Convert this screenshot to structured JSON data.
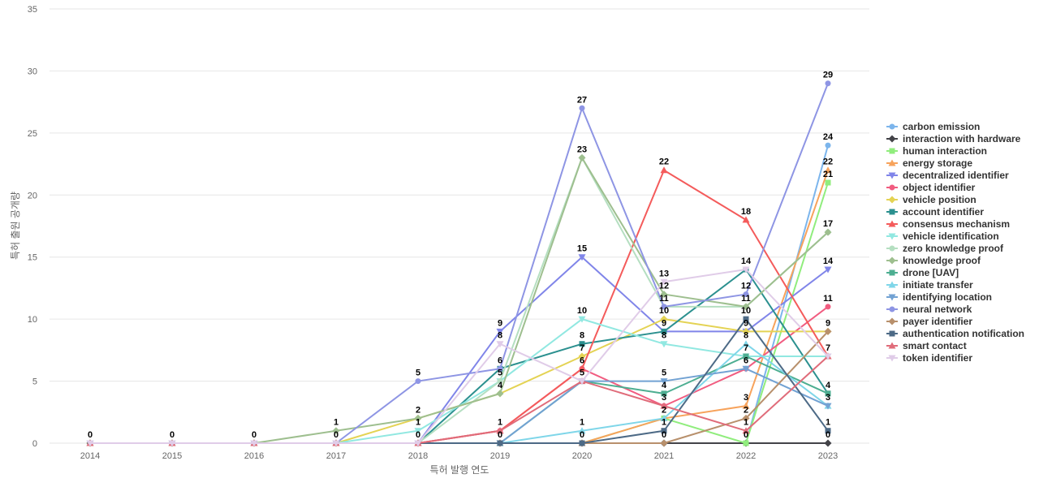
{
  "chart_data": {
    "type": "line",
    "title": "",
    "xlabel": "특허 발행 연도",
    "ylabel": "특허 출원 공개량",
    "ylim": [
      0,
      35
    ],
    "yticks": [
      0,
      5,
      10,
      15,
      20,
      25,
      30,
      35
    ],
    "x": [
      2014,
      2015,
      2016,
      2017,
      2018,
      2019,
      2020,
      2021,
      2022,
      2023
    ],
    "x_tick_labels": [
      "2014",
      "2015",
      "2016",
      "2017",
      "2018",
      "2019",
      "2020",
      "2021",
      "2022",
      "2023"
    ],
    "grid": "horizontal",
    "legend_position": "right",
    "series": [
      {
        "name": "carbon emission",
        "color": "#7cb5ec",
        "marker": "circle",
        "values": [
          0,
          0,
          0,
          0,
          0,
          0,
          0,
          0,
          0,
          24
        ]
      },
      {
        "name": "interaction with hardware",
        "color": "#434348",
        "marker": "diamond",
        "values": [
          0,
          0,
          0,
          0,
          0,
          0,
          0,
          0,
          0,
          0
        ]
      },
      {
        "name": "human interaction",
        "color": "#90ed7d",
        "marker": "square",
        "values": [
          0,
          0,
          0,
          0,
          0,
          0,
          0,
          2,
          0,
          21
        ]
      },
      {
        "name": "energy storage",
        "color": "#f7a35c",
        "marker": "triangle",
        "values": [
          0,
          0,
          0,
          0,
          0,
          0,
          0,
          2,
          3,
          22
        ]
      },
      {
        "name": "decentralized identifier",
        "color": "#8085e9",
        "marker": "triangle-down",
        "values": [
          0,
          0,
          0,
          0,
          0,
          9,
          15,
          9,
          9,
          14
        ]
      },
      {
        "name": "object identifier",
        "color": "#f15c80",
        "marker": "circle",
        "values": [
          0,
          0,
          0,
          0,
          0,
          1,
          6,
          3,
          6,
          11
        ]
      },
      {
        "name": "vehicle position",
        "color": "#e4d354",
        "marker": "diamond",
        "values": [
          0,
          0,
          0,
          0,
          2,
          4,
          7,
          10,
          9,
          9
        ]
      },
      {
        "name": "account identifier",
        "color": "#2b908f",
        "marker": "square",
        "values": [
          0,
          0,
          0,
          0,
          0,
          6,
          8,
          9,
          14,
          4
        ]
      },
      {
        "name": "consensus mechanism",
        "color": "#f45b5b",
        "marker": "triangle",
        "values": [
          0,
          0,
          0,
          0,
          0,
          1,
          6,
          22,
          18,
          7
        ]
      },
      {
        "name": "vehicle identification",
        "color": "#91e8e1",
        "marker": "triangle-down",
        "values": [
          0,
          0,
          0,
          0,
          1,
          5,
          10,
          8,
          7,
          7
        ]
      },
      {
        "name": "zero knowledge proof",
        "color": "#b5dfc1",
        "marker": "circle",
        "values": [
          0,
          0,
          0,
          0,
          0,
          5,
          23,
          11,
          11,
          17
        ]
      },
      {
        "name": "knowledge proof",
        "color": "#9ebf8f",
        "marker": "diamond",
        "values": [
          0,
          0,
          0,
          1,
          2,
          4,
          23,
          12,
          11,
          17
        ]
      },
      {
        "name": "drone [UAV]",
        "color": "#4dae91",
        "marker": "square",
        "values": [
          0,
          0,
          0,
          0,
          0,
          0,
          5,
          4,
          7,
          4
        ]
      },
      {
        "name": "initiate transfer",
        "color": "#7fd6e9",
        "marker": "triangle",
        "values": [
          0,
          0,
          0,
          0,
          0,
          0,
          1,
          2,
          8,
          3
        ]
      },
      {
        "name": "identifying location",
        "color": "#72a2d3",
        "marker": "triangle-down",
        "values": [
          0,
          0,
          0,
          0,
          0,
          0,
          5,
          5,
          6,
          3
        ]
      },
      {
        "name": "neural network",
        "color": "#8e95e4",
        "marker": "circle",
        "values": [
          0,
          0,
          0,
          0,
          5,
          6,
          27,
          11,
          12,
          29
        ]
      },
      {
        "name": "payer identifier",
        "color": "#b8906c",
        "marker": "diamond",
        "values": [
          0,
          0,
          0,
          0,
          0,
          0,
          0,
          0,
          2,
          9
        ]
      },
      {
        "name": "authentication notification",
        "color": "#4d6a86",
        "marker": "square",
        "values": [
          0,
          0,
          0,
          0,
          0,
          0,
          0,
          1,
          10,
          1
        ]
      },
      {
        "name": "smart contact",
        "color": "#e06c7a",
        "marker": "triangle",
        "values": [
          0,
          0,
          0,
          0,
          0,
          1,
          5,
          3,
          1,
          7
        ]
      },
      {
        "name": "token identifier",
        "color": "#e0cce8",
        "marker": "triangle-down",
        "values": [
          0,
          0,
          0,
          0,
          0,
          8,
          5,
          13,
          14,
          7
        ]
      }
    ]
  }
}
